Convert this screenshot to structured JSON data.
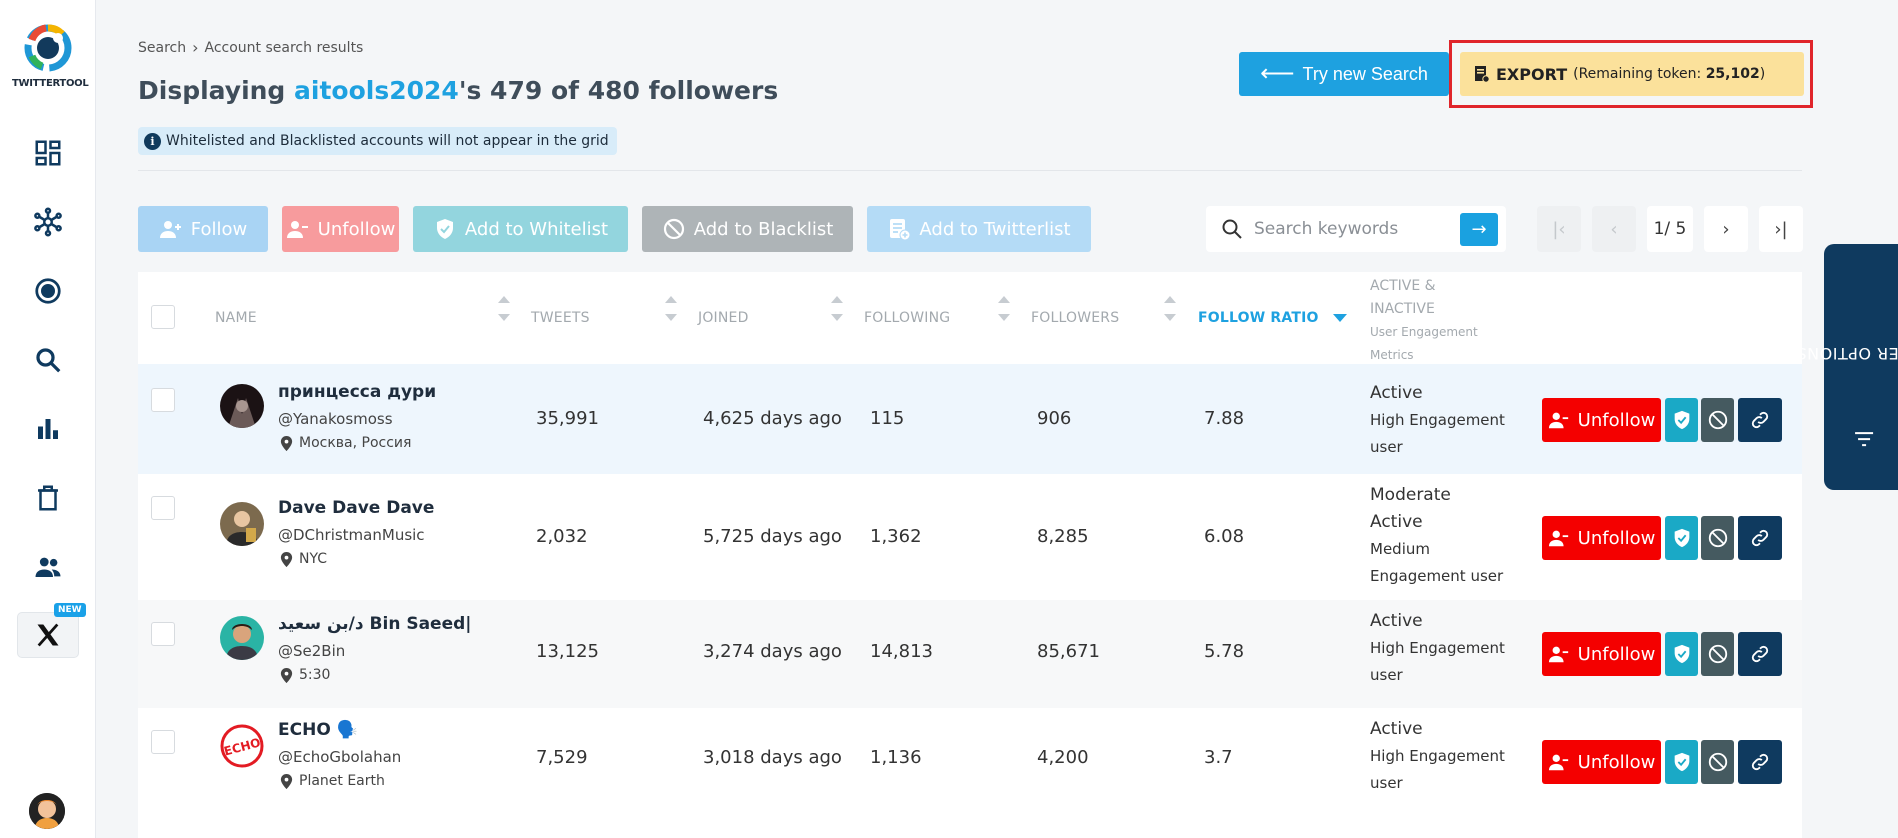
{
  "app": {
    "logo_text": "TWITTERTOOL",
    "new_badge": "NEW"
  },
  "breadcrumb": {
    "root": "Search",
    "current": "Account search results"
  },
  "title": {
    "prefix": "Displaying ",
    "account": "aitools2024",
    "suffix": "'s 479 of 480 followers"
  },
  "info_note": "Whitelisted and Blacklisted accounts will not appear in the grid",
  "header_buttons": {
    "try_new_search": "Try new Search",
    "export_label": "EXPORT",
    "export_token_prefix": "(Remaining token: ",
    "export_token_value": "25,102",
    "export_token_suffix": ")"
  },
  "actions": {
    "follow": "Follow",
    "unfollow": "Unfollow",
    "whitelist": "Add to Whitelist",
    "blacklist": "Add to Blacklist",
    "twitterlist": "Add to Twitterlist"
  },
  "search": {
    "placeholder": "Search keywords",
    "value": ""
  },
  "pagination": {
    "current": "1/ 5"
  },
  "columns": {
    "name": "NAME",
    "tweets": "TWEETS",
    "joined": "JOINED",
    "following": "FOLLOWING",
    "followers": "FOLLOWERS",
    "follow_ratio": "FOLLOW RATIO",
    "activity_line1": "ACTIVE &",
    "activity_line2": "INACTIVE",
    "activity_line3": "User Engagement",
    "activity_line4": "Metrics"
  },
  "rows": [
    {
      "name": "принцесса дури",
      "handle": "@Yanakosmoss",
      "location": "Москва, Россия",
      "tweets": "35,991",
      "joined": "4,625 days ago",
      "following": "115",
      "followers": "906",
      "ratio": "7.88",
      "status": "Active",
      "engagement_line1": "High Engagement",
      "engagement_line2": "user",
      "action": "Unfollow"
    },
    {
      "name": "Dave Dave Dave",
      "handle": "@DChristmanMusic",
      "location": "NYC",
      "tweets": "2,032",
      "joined": "5,725 days ago",
      "following": "1,362",
      "followers": "8,285",
      "ratio": "6.08",
      "status_line1": "Moderate",
      "status_line2": "Active",
      "engagement_line1": "Medium",
      "engagement_line2": "Engagement user",
      "action": "Unfollow"
    },
    {
      "name": "د/بن سعيد Bin Saeed|",
      "handle": "@Se2Bin",
      "location": "5:30",
      "tweets": "13,125",
      "joined": "3,274 days ago",
      "following": "14,813",
      "followers": "85,671",
      "ratio": "5.78",
      "status": "Active",
      "engagement_line1": "High Engagement",
      "engagement_line2": "user",
      "action": "Unfollow"
    },
    {
      "name": "ECHO 🗣️",
      "handle": "@EchoGbolahan",
      "location": "Planet Earth",
      "tweets": "7,529",
      "joined": "3,018 days ago",
      "following": "1,136",
      "followers": "4,200",
      "ratio": "3.7",
      "status": "Active",
      "engagement_line1": "High Engagement",
      "engagement_line2": "user",
      "action": "Unfollow"
    }
  ],
  "filter_tab": "FILTER OPTIONS",
  "colors": {
    "accent": "#1ea1e0",
    "danger": "#f40000",
    "export": "#fbe19b",
    "navy": "#0f3a5f"
  },
  "icons": [
    "dashboard-icon",
    "network-icon",
    "target-icon",
    "search-icon",
    "bar-chart-icon",
    "trash-icon",
    "users-icon",
    "x-logo-icon"
  ]
}
